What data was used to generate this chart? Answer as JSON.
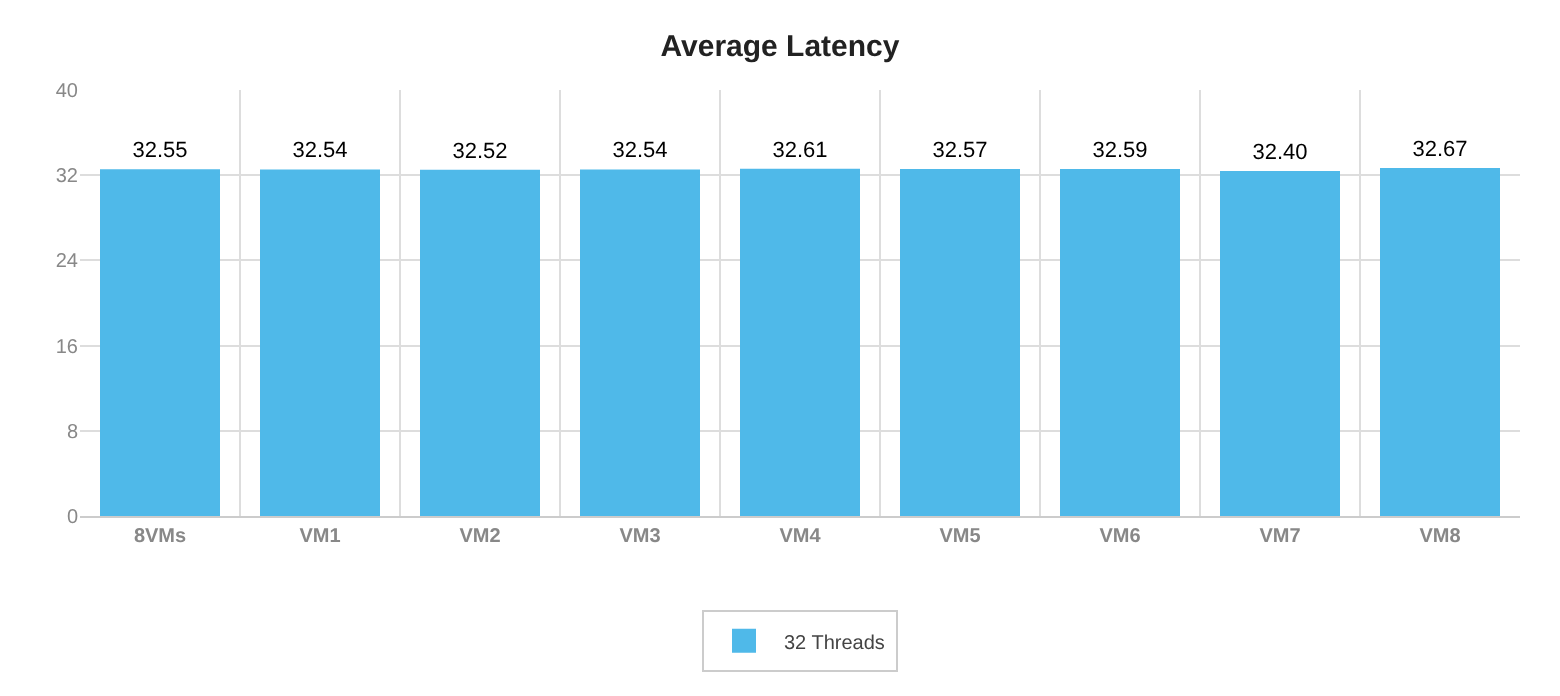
{
  "chart_data": {
    "type": "bar",
    "title": "Average Latency",
    "categories": [
      "8VMs",
      "VM1",
      "VM2",
      "VM3",
      "VM4",
      "VM5",
      "VM6",
      "VM7",
      "VM8"
    ],
    "series": [
      {
        "name": "32 Threads",
        "color": "#4fb9e9",
        "values": [
          32.55,
          32.54,
          32.52,
          32.54,
          32.61,
          32.57,
          32.59,
          32.4,
          32.67
        ],
        "value_labels": [
          "32.55",
          "32.54",
          "32.52",
          "32.54",
          "32.61",
          "32.57",
          "32.59",
          "32.40",
          "32.67"
        ]
      }
    ],
    "ylim": [
      0,
      40
    ],
    "yticks": [
      0,
      8,
      16,
      24,
      32,
      40
    ],
    "grid": true,
    "legend": "bottom"
  }
}
